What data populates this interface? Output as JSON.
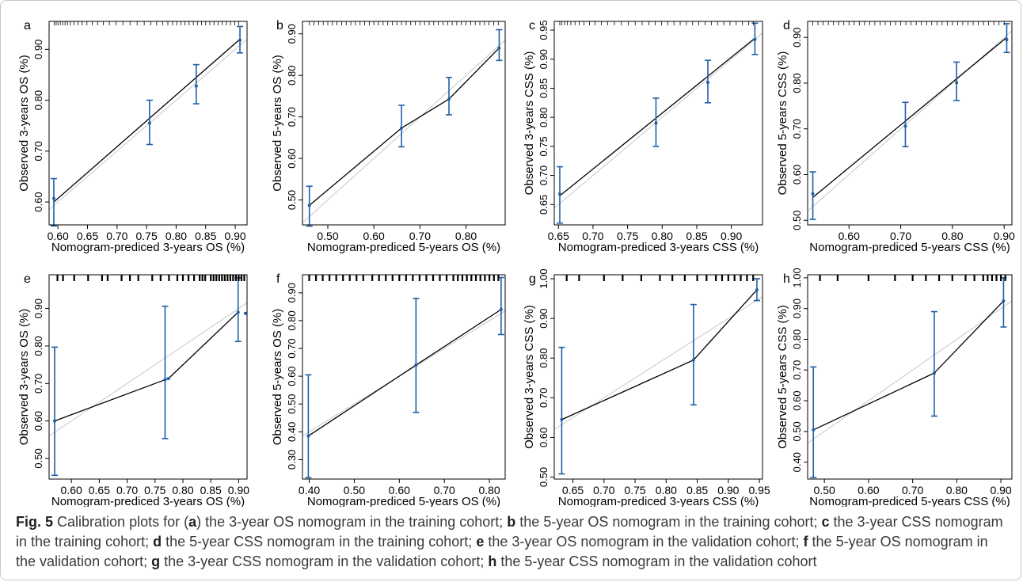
{
  "figure": {
    "caption": {
      "fig_label": "Fig. 5",
      "parts": [
        {
          "text": " Calibration plots for ("
        },
        {
          "bold": "a"
        },
        {
          "text": ") the 3-year OS nomogram in the training cohort; "
        },
        {
          "bold": "b"
        },
        {
          "text": " the 5-year OS nomogram in the training cohort; "
        },
        {
          "bold": "c"
        },
        {
          "text": " the 3-year CSS nomogram in the training cohort; "
        },
        {
          "bold": "d"
        },
        {
          "text": " the 5-year CSS nomogram in the training cohort; "
        },
        {
          "bold": "e"
        },
        {
          "text": " the 3-year OS nomogram in the validation cohort; "
        },
        {
          "bold": "f"
        },
        {
          "text": " the 5-year OS nomogram in the validation cohort; "
        },
        {
          "bold": "g"
        },
        {
          "text": " the 3-year CSS nomogram in the validation cohort; "
        },
        {
          "bold": "h"
        },
        {
          "text": " the 5-year CSS nomogram in the validation cohort"
        }
      ]
    },
    "colors": {
      "line": "#000000",
      "ideal": "#c8c8c8",
      "errorbar": "#1f5fa8",
      "point": "#1f5fa8",
      "axis": "#000000"
    }
  },
  "chart_data": [
    {
      "panel": "a",
      "type": "line",
      "xlabel": "Nomogram-prediced 3-years OS (%)",
      "ylabel": "Observed 3-years OS (%)",
      "xlim": [
        0.585,
        0.92
      ],
      "ylim": [
        0.555,
        0.955
      ],
      "xticks": [
        0.6,
        0.65,
        0.7,
        0.75,
        0.8,
        0.85,
        0.9
      ],
      "xtick_labels": [
        "0.60",
        "0.65",
        "0.70",
        "0.75",
        "0.80",
        "0.85",
        "0.90"
      ],
      "yticks": [
        0.6,
        0.7,
        0.8,
        0.9
      ],
      "ytick_labels": [
        "0.60",
        "0.70",
        "0.80",
        "0.90"
      ],
      "points": [
        {
          "x": 0.593,
          "y": 0.607,
          "lo": 0.553,
          "hi": 0.646
        },
        {
          "x": 0.755,
          "y": 0.755,
          "lo": 0.713,
          "hi": 0.8
        },
        {
          "x": 0.834,
          "y": 0.828,
          "lo": 0.793,
          "hi": 0.87
        },
        {
          "x": 0.908,
          "y": 0.918,
          "lo": 0.893,
          "hi": 0.945
        }
      ],
      "line": [
        [
          0.593,
          0.6
        ],
        [
          0.908,
          0.92
        ]
      ],
      "rug": [
        0.594,
        0.597,
        0.6,
        0.604,
        0.608,
        0.612,
        0.616,
        0.621,
        0.627,
        0.634,
        0.641,
        0.649,
        0.658,
        0.667,
        0.677,
        0.687,
        0.698,
        0.71,
        0.722,
        0.734,
        0.746,
        0.757,
        0.767,
        0.777,
        0.786,
        0.794,
        0.801,
        0.808,
        0.815,
        0.822,
        0.829,
        0.836,
        0.843,
        0.85,
        0.857,
        0.864,
        0.871,
        0.878,
        0.885,
        0.892,
        0.899,
        0.906
      ],
      "rug_style": "dense"
    },
    {
      "panel": "b",
      "type": "line",
      "xlabel": "Nomogram-prediced 5-years OS (%)",
      "ylabel": "Observed 5-years OS (%)",
      "xlim": [
        0.445,
        0.885
      ],
      "ylim": [
        0.44,
        0.93
      ],
      "xticks": [
        0.5,
        0.6,
        0.7,
        0.8
      ],
      "xtick_labels": [
        "0.50",
        "0.60",
        "0.70",
        "0.80"
      ],
      "yticks": [
        0.5,
        0.6,
        0.7,
        0.8,
        0.9
      ],
      "ytick_labels": [
        "0.50",
        "0.60",
        "0.70",
        "0.80",
        "0.90"
      ],
      "points": [
        {
          "x": 0.46,
          "y": 0.487,
          "lo": 0.437,
          "hi": 0.533
        },
        {
          "x": 0.66,
          "y": 0.673,
          "lo": 0.628,
          "hi": 0.728
        },
        {
          "x": 0.763,
          "y": 0.743,
          "lo": 0.705,
          "hi": 0.795
        },
        {
          "x": 0.872,
          "y": 0.866,
          "lo": 0.836,
          "hi": 0.91
        }
      ],
      "line": [
        [
          0.46,
          0.487
        ],
        [
          0.66,
          0.673
        ],
        [
          0.763,
          0.743
        ],
        [
          0.872,
          0.866
        ]
      ],
      "rug": [
        0.46,
        0.47,
        0.48,
        0.49,
        0.5,
        0.51,
        0.52,
        0.53,
        0.54,
        0.55,
        0.56,
        0.57,
        0.58,
        0.59,
        0.6,
        0.61,
        0.62,
        0.63,
        0.64,
        0.65,
        0.66,
        0.67,
        0.68,
        0.69,
        0.7,
        0.71,
        0.72,
        0.73,
        0.74,
        0.75,
        0.76,
        0.77,
        0.78,
        0.79,
        0.8,
        0.81,
        0.82,
        0.83,
        0.84,
        0.85,
        0.86,
        0.87
      ],
      "rug_style": "dense"
    },
    {
      "panel": "c",
      "type": "line",
      "xlabel": "Nomogram-prediced 3-years CSS (%)",
      "ylabel": "Observed 3-years CSS (%)",
      "xlim": [
        0.644,
        0.945
      ],
      "ylim": [
        0.615,
        0.965
      ],
      "xticks": [
        0.65,
        0.7,
        0.75,
        0.8,
        0.85,
        0.9
      ],
      "xtick_labels": [
        "0.65",
        "0.70",
        "0.75",
        "0.80",
        "0.85",
        "0.90"
      ],
      "yticks": [
        0.65,
        0.7,
        0.75,
        0.8,
        0.85,
        0.9,
        0.95
      ],
      "ytick_labels": [
        "0.65",
        "0.70",
        "0.75",
        "0.80",
        "0.85",
        "0.90",
        "0.95"
      ],
      "points": [
        {
          "x": 0.652,
          "y": 0.668,
          "lo": 0.618,
          "hi": 0.715
        },
        {
          "x": 0.791,
          "y": 0.79,
          "lo": 0.75,
          "hi": 0.833
        },
        {
          "x": 0.866,
          "y": 0.86,
          "lo": 0.825,
          "hi": 0.898
        },
        {
          "x": 0.934,
          "y": 0.934,
          "lo": 0.908,
          "hi": 0.962
        }
      ],
      "line": [
        [
          0.652,
          0.665
        ],
        [
          0.934,
          0.936
        ]
      ],
      "rug": [
        0.652,
        0.655,
        0.659,
        0.663,
        0.668,
        0.674,
        0.68,
        0.687,
        0.695,
        0.703,
        0.712,
        0.721,
        0.731,
        0.741,
        0.751,
        0.761,
        0.771,
        0.781,
        0.79,
        0.799,
        0.808,
        0.817,
        0.826,
        0.835,
        0.844,
        0.853,
        0.862,
        0.871,
        0.88,
        0.889,
        0.898,
        0.907,
        0.916,
        0.925,
        0.932
      ],
      "rug_style": "dense"
    },
    {
      "panel": "d",
      "type": "line",
      "xlabel": "Nomogram-prediced 5-years CSS (%)",
      "ylabel": "Observed 5-years CSS (%)",
      "xlim": [
        0.52,
        0.915
      ],
      "ylim": [
        0.49,
        0.935
      ],
      "xticks": [
        0.6,
        0.7,
        0.8,
        0.9
      ],
      "xtick_labels": [
        "0.60",
        "0.70",
        "0.80",
        "0.90"
      ],
      "yticks": [
        0.5,
        0.6,
        0.7,
        0.8,
        0.9
      ],
      "ytick_labels": [
        "0.50",
        "0.60",
        "0.70",
        "0.80",
        "0.90"
      ],
      "points": [
        {
          "x": 0.53,
          "y": 0.558,
          "lo": 0.502,
          "hi": 0.606
        },
        {
          "x": 0.709,
          "y": 0.706,
          "lo": 0.661,
          "hi": 0.758
        },
        {
          "x": 0.808,
          "y": 0.801,
          "lo": 0.762,
          "hi": 0.846
        },
        {
          "x": 0.905,
          "y": 0.895,
          "lo": 0.867,
          "hi": 0.93
        }
      ],
      "line": [
        [
          0.53,
          0.55
        ],
        [
          0.905,
          0.9
        ]
      ],
      "rug": [
        0.53,
        0.54,
        0.55,
        0.56,
        0.57,
        0.58,
        0.59,
        0.6,
        0.61,
        0.62,
        0.63,
        0.64,
        0.65,
        0.66,
        0.67,
        0.68,
        0.69,
        0.7,
        0.71,
        0.72,
        0.73,
        0.74,
        0.75,
        0.76,
        0.77,
        0.78,
        0.79,
        0.8,
        0.81,
        0.82,
        0.83,
        0.84,
        0.85,
        0.86,
        0.87,
        0.88,
        0.89,
        0.9
      ],
      "rug_style": "dense"
    },
    {
      "panel": "e",
      "type": "line",
      "xlabel": "Nomogram-prediced 3-years OS (%)",
      "ylabel": "Observed 3-years OS (%)",
      "xlim": [
        0.56,
        0.915
      ],
      "ylim": [
        0.445,
        0.99
      ],
      "xticks": [
        0.6,
        0.65,
        0.7,
        0.75,
        0.8,
        0.85,
        0.9
      ],
      "xtick_labels": [
        "0.60",
        "0.65",
        "0.70",
        "0.75",
        "0.80",
        "0.85",
        "0.90"
      ],
      "yticks": [
        0.5,
        0.6,
        0.7,
        0.8,
        0.9
      ],
      "ytick_labels": [
        "0.50",
        "0.60",
        "0.70",
        "0.80",
        "0.90"
      ],
      "points": [
        {
          "x": 0.57,
          "y": 0.6,
          "lo": 0.455,
          "hi": 0.797
        },
        {
          "x": 0.768,
          "y": 0.71,
          "lo": 0.553,
          "hi": 0.906
        },
        {
          "x": 0.774,
          "y": 0.713,
          "lo": null,
          "hi": null
        },
        {
          "x": 0.899,
          "y": 0.89,
          "lo": 0.812,
          "hi": 0.982
        },
        {
          "x": 0.912,
          "y": 0.887,
          "lo": null,
          "hi": null
        }
      ],
      "line": [
        [
          0.57,
          0.6
        ],
        [
          0.768,
          0.71
        ],
        [
          0.774,
          0.713
        ],
        [
          0.899,
          0.89
        ]
      ],
      "rug": [
        0.575,
        0.585,
        0.605,
        0.63,
        0.655,
        0.665,
        0.69,
        0.705,
        0.72,
        0.745,
        0.76,
        0.775,
        0.79,
        0.8,
        0.81,
        0.82,
        0.83,
        0.835,
        0.84,
        0.85,
        0.855,
        0.86,
        0.865,
        0.87,
        0.875,
        0.88,
        0.885,
        0.89,
        0.895,
        0.9,
        0.905,
        0.91
      ],
      "rug_style": "sparse"
    },
    {
      "panel": "f",
      "type": "line",
      "xlabel": "Nomogram-prediced 5-years OS (%)",
      "ylabel": "Observed 5-years OS (%)",
      "xlim": [
        0.385,
        0.835
      ],
      "ylim": [
        0.23,
        0.965
      ],
      "xticks": [
        0.4,
        0.5,
        0.6,
        0.7,
        0.8
      ],
      "xtick_labels": [
        "0.40",
        "0.50",
        "0.60",
        "0.70",
        "0.80"
      ],
      "yticks": [
        0.3,
        0.4,
        0.5,
        0.6,
        0.7,
        0.8,
        0.9
      ],
      "ytick_labels": [
        "0.30",
        "0.40",
        "0.50",
        "0.60",
        "0.70",
        "0.80",
        "0.90"
      ],
      "points": [
        {
          "x": 0.398,
          "y": 0.385,
          "lo": 0.235,
          "hi": 0.605
        },
        {
          "x": 0.637,
          "y": 0.64,
          "lo": 0.47,
          "hi": 0.88
        },
        {
          "x": 0.826,
          "y": 0.84,
          "lo": 0.75,
          "hi": 0.955
        }
      ],
      "line": [
        [
          0.398,
          0.385
        ],
        [
          0.637,
          0.64
        ],
        [
          0.826,
          0.84
        ]
      ],
      "rug": [
        0.4,
        0.415,
        0.43,
        0.445,
        0.46,
        0.475,
        0.49,
        0.505,
        0.52,
        0.54,
        0.555,
        0.57,
        0.585,
        0.6,
        0.615,
        0.63,
        0.645,
        0.66,
        0.675,
        0.69,
        0.705,
        0.72,
        0.73,
        0.74,
        0.75,
        0.76,
        0.77,
        0.78,
        0.79,
        0.8,
        0.81,
        0.82
      ],
      "rug_style": "sparse"
    },
    {
      "panel": "g",
      "type": "line",
      "xlabel": "Nomogram-prediced 3-years CSS (%)",
      "ylabel": "Observed 3-years CSS (%)",
      "xlim": [
        0.62,
        0.955
      ],
      "ylim": [
        0.495,
        1.01
      ],
      "xticks": [
        0.65,
        0.7,
        0.75,
        0.8,
        0.85,
        0.9,
        0.95
      ],
      "xtick_labels": [
        "0.65",
        "0.70",
        "0.75",
        "0.80",
        "0.85",
        "0.90",
        "0.95"
      ],
      "yticks": [
        0.5,
        0.6,
        0.7,
        0.8,
        0.9,
        1.0
      ],
      "ytick_labels": [
        "0.50",
        "0.60",
        "0.70",
        "0.80",
        "0.90",
        "1.00"
      ],
      "points": [
        {
          "x": 0.632,
          "y": 0.645,
          "lo": 0.508,
          "hi": 0.827
        },
        {
          "x": 0.844,
          "y": 0.795,
          "lo": 0.682,
          "hi": 0.935
        },
        {
          "x": 0.946,
          "y": 0.972,
          "lo": 0.945,
          "hi": 1.0
        }
      ],
      "line": [
        [
          0.632,
          0.645
        ],
        [
          0.844,
          0.795
        ],
        [
          0.946,
          0.972
        ]
      ],
      "rug": [
        0.64,
        0.66,
        0.7,
        0.73,
        0.76,
        0.79,
        0.81,
        0.83,
        0.85,
        0.865,
        0.88,
        0.89,
        0.9,
        0.91,
        0.92,
        0.93,
        0.94
      ],
      "rug_style": "sparse"
    },
    {
      "panel": "h",
      "type": "line",
      "xlabel": "Nomogram-prediced 5-years CSS (%)",
      "ylabel": "Observed 5-years CSS (%)",
      "xlim": [
        0.462,
        0.925
      ],
      "ylim": [
        0.345,
        1.01
      ],
      "xticks": [
        0.5,
        0.6,
        0.7,
        0.8,
        0.9
      ],
      "xtick_labels": [
        "0.50",
        "0.60",
        "0.70",
        "0.80",
        "0.90"
      ],
      "yticks": [
        0.4,
        0.5,
        0.6,
        0.7,
        0.8,
        0.9,
        1.0
      ],
      "ytick_labels": [
        "0.40",
        "0.50",
        "0.60",
        "0.70",
        "0.80",
        "0.90",
        "1.00"
      ],
      "points": [
        {
          "x": 0.475,
          "y": 0.505,
          "lo": 0.35,
          "hi": 0.71
        },
        {
          "x": 0.749,
          "y": 0.69,
          "lo": 0.55,
          "hi": 0.89
        },
        {
          "x": 0.906,
          "y": 0.925,
          "lo": 0.84,
          "hi": 1.0
        }
      ],
      "line": [
        [
          0.475,
          0.505
        ],
        [
          0.749,
          0.69
        ],
        [
          0.906,
          0.925
        ]
      ],
      "rug": [
        0.49,
        0.53,
        0.6,
        0.66,
        0.7,
        0.73,
        0.76,
        0.79,
        0.82,
        0.84,
        0.86,
        0.87,
        0.88,
        0.89,
        0.9,
        0.91
      ],
      "rug_style": "sparse"
    }
  ]
}
